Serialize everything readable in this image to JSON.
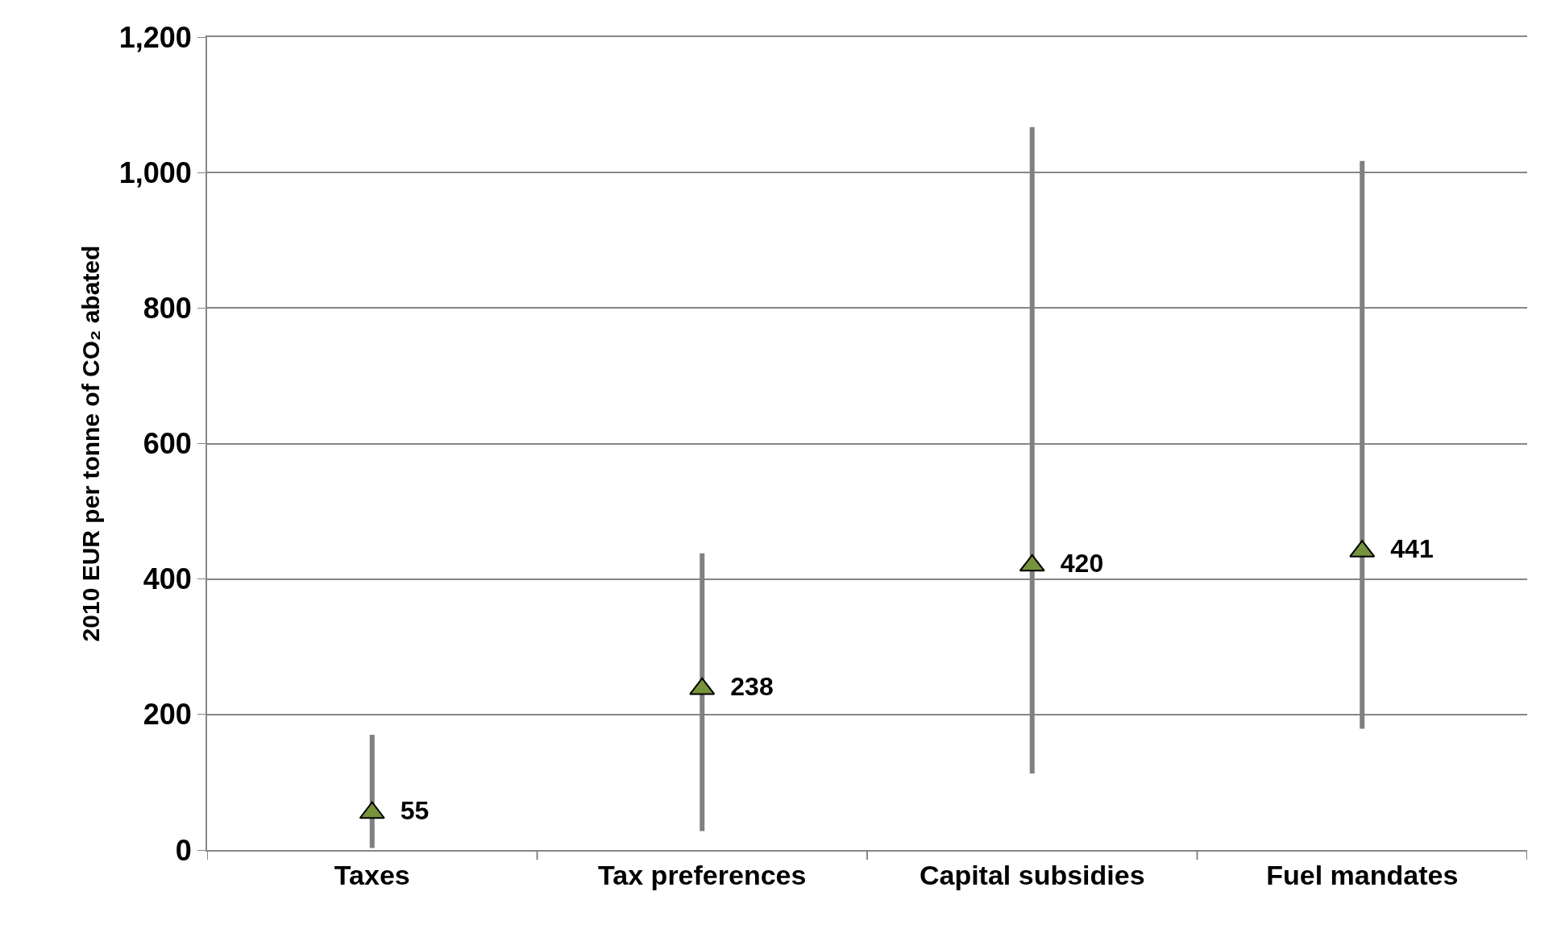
{
  "chart_data": {
    "type": "scatter",
    "ylabel": "2010 EUR per tonne of CO₂ abated",
    "categories": [
      "Taxes",
      "Tax preferences",
      "Capital subsidies",
      "Fuel mandates"
    ],
    "values": [
      55,
      238,
      420,
      441
    ],
    "errors": [
      [
        3,
        170
      ],
      [
        28,
        438
      ],
      [
        113,
        1067
      ],
      [
        179,
        1017
      ]
    ],
    "color": "#77933c",
    "marker": "triangle",
    "data_labels": true,
    "ylim": [
      0,
      1200
    ],
    "yticks": [
      0,
      {
        "value": 200,
        "label": "200"
      },
      {
        "value": 400,
        "label": "400"
      },
      {
        "value": 600,
        "label": "600"
      },
      {
        "value": 800,
        "label": "800"
      },
      {
        "value": 1000,
        "label": "1,000"
      },
      {
        "value": 1200,
        "label": "1,200"
      }
    ],
    "grid": "y",
    "legend": false
  }
}
